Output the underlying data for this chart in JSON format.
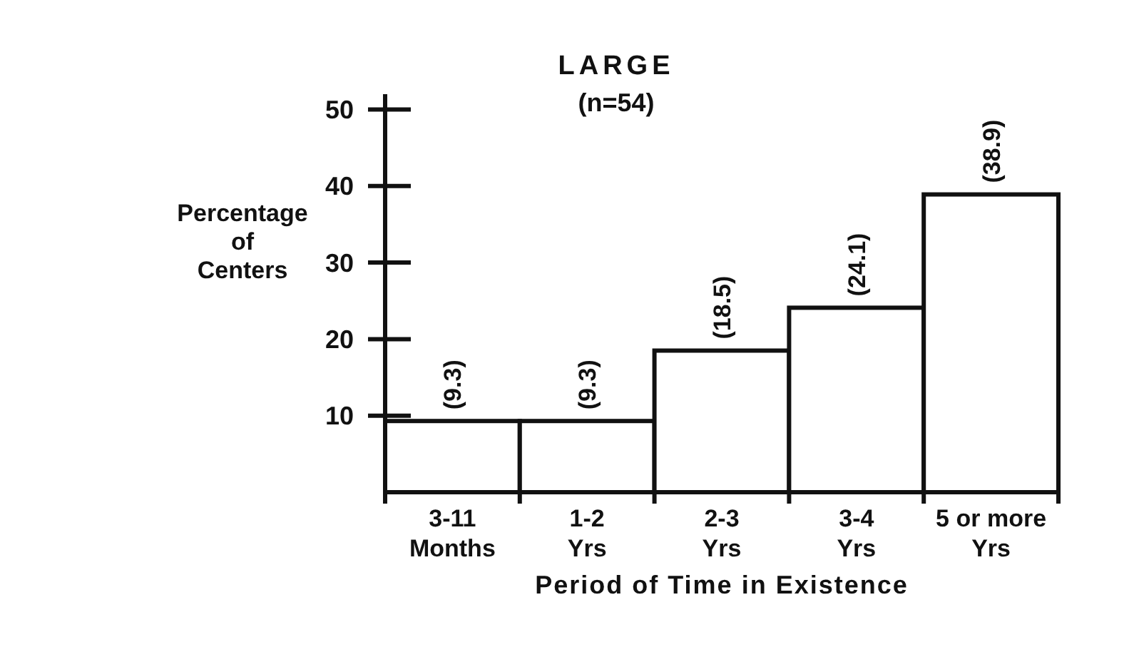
{
  "chart_data": {
    "type": "bar",
    "title": "LARGE",
    "subtitle": "(n=54)",
    "xlabel": "Period of Time in Existence",
    "ylabel": "Percentage\nof\nCenters",
    "categories": [
      "3-11\nMonths",
      "1-2\nYrs",
      "2-3\nYrs",
      "3-4\nYrs",
      "5 or more\nYrs"
    ],
    "values": [
      9.3,
      9.3,
      18.5,
      24.1,
      38.9
    ],
    "value_labels": [
      "(9.3)",
      "(9.3)",
      "(18.5)",
      "(24.1)",
      "(38.9)"
    ],
    "color": "#ffffff",
    "ylim": [
      0,
      52
    ],
    "yticks": [
      10,
      20,
      30,
      40,
      50
    ],
    "grid": false
  }
}
